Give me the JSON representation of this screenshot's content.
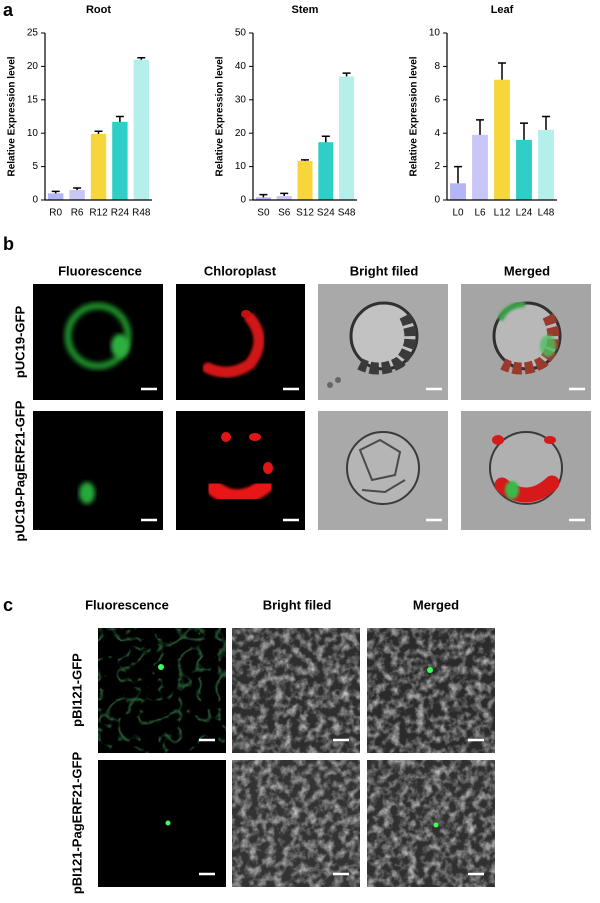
{
  "panel_labels": [
    "a",
    "b",
    "c"
  ],
  "chart_data": [
    {
      "type": "bar",
      "title": "Root",
      "ylabel": "Relative Expression level",
      "categories": [
        "R0",
        "R6",
        "R12",
        "R24",
        "R48"
      ],
      "values": [
        1.0,
        1.5,
        9.9,
        11.7,
        21.0
      ],
      "errors": [
        0.3,
        0.3,
        0.4,
        0.8,
        0.3
      ],
      "colors": [
        "#b3b6f2",
        "#c8c6f6",
        "#f6d63b",
        "#2fcec6",
        "#b4efeb"
      ],
      "ylim": [
        0,
        25
      ],
      "yticks": [
        0,
        5,
        10,
        15,
        20,
        25
      ]
    },
    {
      "type": "bar",
      "title": "Stem",
      "ylabel": "Relative Expression level",
      "categories": [
        "S0",
        "S6",
        "S12",
        "S24",
        "S48"
      ],
      "values": [
        0.8,
        1.2,
        11.7,
        17.3,
        37.0
      ],
      "errors": [
        0.8,
        0.8,
        0.3,
        1.8,
        1.0
      ],
      "colors": [
        "#b3b6f2",
        "#c8c6f6",
        "#f6d63b",
        "#2fcec6",
        "#b4efeb"
      ],
      "ylim": [
        0,
        50
      ],
      "yticks": [
        0,
        10,
        20,
        30,
        40,
        50
      ]
    },
    {
      "type": "bar",
      "title": "Leaf",
      "ylabel": "Relative Expression level",
      "categories": [
        "L0",
        "L6",
        "L12",
        "L24",
        "L48"
      ],
      "values": [
        1.0,
        3.9,
        7.2,
        3.6,
        4.2
      ],
      "errors": [
        1.0,
        0.9,
        1.0,
        1.0,
        0.8
      ],
      "colors": [
        "#b3b6f2",
        "#c8c6f6",
        "#f6d63b",
        "#2fcec6",
        "#b4efeb"
      ],
      "ylim": [
        0,
        10
      ],
      "yticks": [
        0,
        2,
        4,
        6,
        8,
        10
      ]
    }
  ],
  "panel_b": {
    "columns": [
      "Fluorescence",
      "Chloroplast",
      "Bright filed",
      "Merged"
    ],
    "rows": [
      "pUC19-GFP",
      "pUC19-PagERF21-GFP"
    ]
  },
  "panel_c": {
    "columns": [
      "Fluorescence",
      "Bright filed",
      "Merged"
    ],
    "rows": [
      "pBI121-GFP",
      "pBI121-PagERF21-GFP"
    ]
  }
}
